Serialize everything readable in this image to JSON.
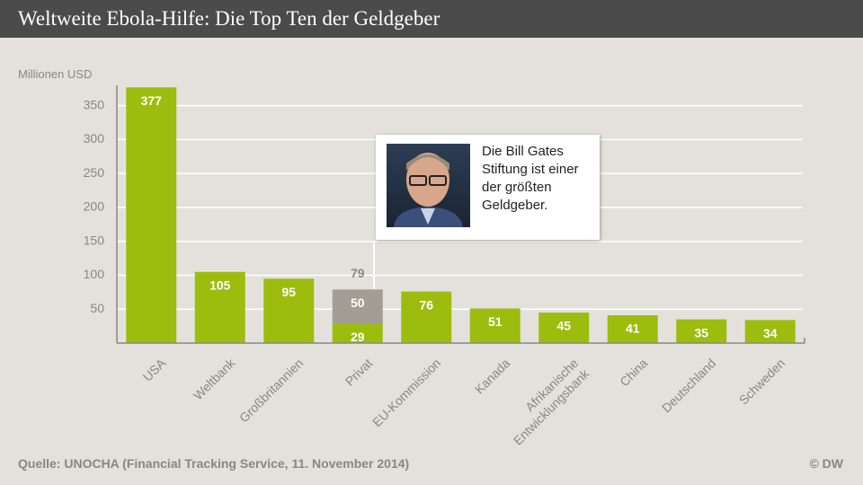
{
  "chart_data": {
    "type": "bar",
    "stacked": true,
    "title": "Weltweite Ebola-Hilfe: Die Top Ten der Geldgeber",
    "y_label": "Millionen USD",
    "categories": [
      "USA",
      "Weltbank",
      "Großbritannien",
      "Privat",
      "EU-Kommission",
      "Kanada",
      "Afrikanische\nEntwicklungsbank",
      "China",
      "Deutschland",
      "Schweden"
    ],
    "series": [
      {
        "color": "#9dbd0e",
        "values": [
          377,
          105,
          95,
          29,
          76,
          51,
          45,
          41,
          35,
          34
        ]
      },
      {
        "color": "#a39d93",
        "values": [
          null,
          null,
          null,
          50,
          null,
          null,
          null,
          null,
          null,
          null
        ]
      }
    ],
    "totals": [
      null,
      null,
      null,
      79,
      null,
      null,
      null,
      null,
      null,
      null
    ],
    "ylim": [
      0,
      380
    ],
    "yticks": [
      50,
      100,
      150,
      200,
      250,
      300,
      350
    ],
    "grid": true,
    "callout": "Die Bill Gates Stiftung ist einer der größten Geldgeber.",
    "source": "Quelle: UNOCHA (Financial Tracking Service, 11. November 2014)",
    "credit": "© DW"
  }
}
